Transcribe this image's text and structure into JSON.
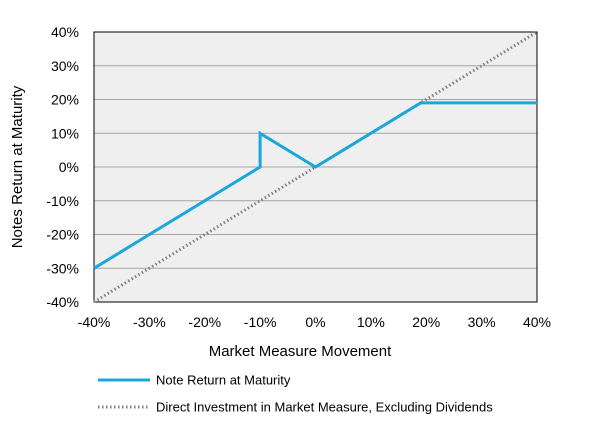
{
  "chart_data": {
    "type": "line",
    "xlabel": "Market Measure Movement",
    "ylabel": "Notes Return  at Maturity",
    "xlim": [
      -40,
      40
    ],
    "ylim": [
      -40,
      40
    ],
    "x_ticks": [
      "-40%",
      "-30%",
      "-20%",
      "-10%",
      "0%",
      "10%",
      "20%",
      "30%",
      "40%"
    ],
    "y_ticks": [
      "40%",
      "30%",
      "20%",
      "10%",
      "0%",
      "-10%",
      "-20%",
      "-30%",
      "-40%"
    ],
    "x_tick_values": [
      -40,
      -30,
      -20,
      -10,
      0,
      10,
      20,
      30,
      40
    ],
    "y_tick_values": [
      40,
      30,
      20,
      10,
      0,
      -10,
      -20,
      -30,
      -40
    ],
    "grid": "horizontal",
    "plot_background": "#efefef",
    "legend_position": "bottom",
    "series": [
      {
        "name": "Note Return at Maturity",
        "color": "#1aa7dc",
        "style": "solid",
        "x": [
          -40,
          -10,
          -10,
          0,
          19,
          40
        ],
        "y": [
          -30,
          0,
          10,
          0,
          19,
          19
        ]
      },
      {
        "name": "Direct Investment in Market Measure, Excluding Dividends",
        "color": "#7f7f7f",
        "style": "dotted",
        "x": [
          -40,
          40
        ],
        "y": [
          -40,
          40
        ]
      }
    ]
  }
}
